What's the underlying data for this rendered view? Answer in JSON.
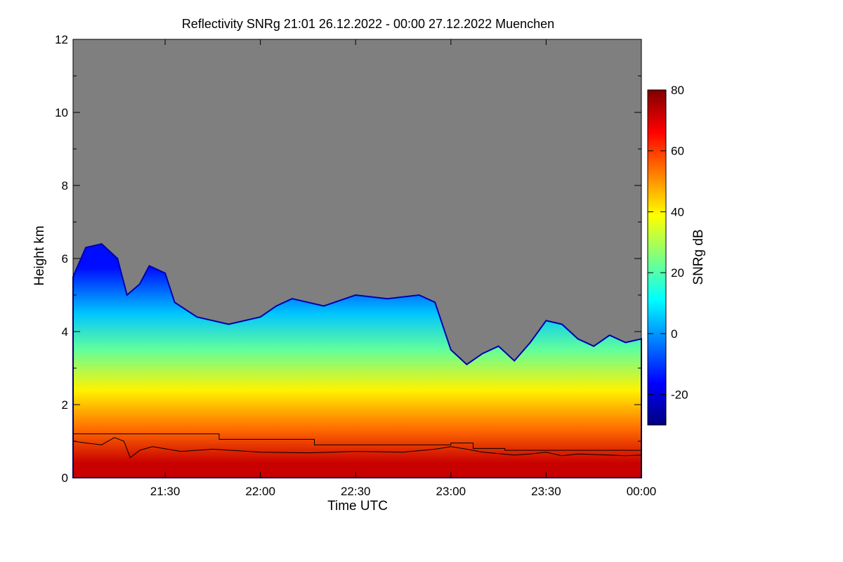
{
  "chart_data": {
    "type": "heatmap",
    "title": "Reflectivity SNRg   21:01 26.12.2022 - 00:00 27.12.2022 Muenchen",
    "xlabel": "Time UTC",
    "ylabel": "Height km",
    "xlim": [
      "21:01",
      "00:00"
    ],
    "ylim": [
      0,
      12
    ],
    "x_ticks": [
      "21:30",
      "22:00",
      "22:30",
      "23:00",
      "23:30",
      "00:00"
    ],
    "y_ticks": [
      0,
      2,
      4,
      6,
      8,
      10,
      12
    ],
    "background_color": "#7f7f7f",
    "grid": false,
    "colorbar": {
      "label": "SNRg dB",
      "range": [
        -30,
        80
      ],
      "ticks": [
        -20,
        0,
        20,
        40,
        60,
        80
      ],
      "colors": [
        "#00007f",
        "#0000ff",
        "#007fff",
        "#00ffff",
        "#7fff7f",
        "#ffff00",
        "#ff7f00",
        "#ff0000",
        "#7f0000"
      ]
    },
    "cloud_top_km": [
      {
        "t": "21:01",
        "h": 5.5
      },
      {
        "t": "21:05",
        "h": 6.3
      },
      {
        "t": "21:10",
        "h": 6.4
      },
      {
        "t": "21:15",
        "h": 6.0
      },
      {
        "t": "21:18",
        "h": 5.0
      },
      {
        "t": "21:22",
        "h": 5.3
      },
      {
        "t": "21:25",
        "h": 5.8
      },
      {
        "t": "21:30",
        "h": 5.6
      },
      {
        "t": "21:33",
        "h": 4.8
      },
      {
        "t": "21:40",
        "h": 4.4
      },
      {
        "t": "21:50",
        "h": 4.2
      },
      {
        "t": "22:00",
        "h": 4.4
      },
      {
        "t": "22:05",
        "h": 4.7
      },
      {
        "t": "22:10",
        "h": 4.9
      },
      {
        "t": "22:20",
        "h": 4.7
      },
      {
        "t": "22:30",
        "h": 5.0
      },
      {
        "t": "22:40",
        "h": 4.9
      },
      {
        "t": "22:50",
        "h": 5.0
      },
      {
        "t": "22:55",
        "h": 4.8
      },
      {
        "t": "23:00",
        "h": 3.5
      },
      {
        "t": "23:05",
        "h": 3.1
      },
      {
        "t": "23:10",
        "h": 3.4
      },
      {
        "t": "23:15",
        "h": 3.6
      },
      {
        "t": "23:20",
        "h": 3.2
      },
      {
        "t": "23:25",
        "h": 3.7
      },
      {
        "t": "23:30",
        "h": 4.3
      },
      {
        "t": "23:35",
        "h": 4.2
      },
      {
        "t": "23:40",
        "h": 3.8
      },
      {
        "t": "23:45",
        "h": 3.6
      },
      {
        "t": "23:50",
        "h": 3.9
      },
      {
        "t": "23:55",
        "h": 3.7
      },
      {
        "t": "00:00",
        "h": 3.8
      }
    ],
    "series": [
      {
        "type": "step",
        "points": [
          {
            "t": "21:01",
            "h": 1.2
          },
          {
            "t": "21:47",
            "h": 1.05
          },
          {
            "t": "22:17",
            "h": 0.9
          },
          {
            "t": "23:00",
            "h": 0.95
          },
          {
            "t": "23:07",
            "h": 0.8
          },
          {
            "t": "23:17",
            "h": 0.75
          },
          {
            "t": "00:00",
            "h": 0.75
          }
        ]
      },
      {
        "type": "line",
        "points": [
          {
            "t": "21:01",
            "h": 1.0
          },
          {
            "t": "21:05",
            "h": 0.95
          },
          {
            "t": "21:10",
            "h": 0.9
          },
          {
            "t": "21:14",
            "h": 1.1
          },
          {
            "t": "21:17",
            "h": 1.0
          },
          {
            "t": "21:19",
            "h": 0.55
          },
          {
            "t": "21:22",
            "h": 0.75
          },
          {
            "t": "21:26",
            "h": 0.85
          },
          {
            "t": "21:35",
            "h": 0.72
          },
          {
            "t": "21:45",
            "h": 0.78
          },
          {
            "t": "22:00",
            "h": 0.7
          },
          {
            "t": "22:15",
            "h": 0.68
          },
          {
            "t": "22:30",
            "h": 0.72
          },
          {
            "t": "22:45",
            "h": 0.7
          },
          {
            "t": "22:55",
            "h": 0.78
          },
          {
            "t": "23:00",
            "h": 0.85
          },
          {
            "t": "23:05",
            "h": 0.78
          },
          {
            "t": "23:10",
            "h": 0.7
          },
          {
            "t": "23:20",
            "h": 0.62
          },
          {
            "t": "23:25",
            "h": 0.65
          },
          {
            "t": "23:30",
            "h": 0.7
          },
          {
            "t": "23:35",
            "h": 0.6
          },
          {
            "t": "23:40",
            "h": 0.65
          },
          {
            "t": "23:50",
            "h": 0.62
          },
          {
            "t": "23:55",
            "h": 0.6
          },
          {
            "t": "00:00",
            "h": 0.62
          }
        ]
      }
    ],
    "dominant_bands_dB": [
      {
        "h_from": 0.0,
        "h_to": 0.8,
        "snr": 72
      },
      {
        "h_from": 0.8,
        "h_to": 1.8,
        "snr": 55
      },
      {
        "h_from": 1.8,
        "h_to": 3.0,
        "snr": 40
      },
      {
        "h_from": 3.0,
        "h_to": 4.0,
        "snr": 22
      },
      {
        "h_from": 4.0,
        "h_to": 5.0,
        "snr": 5
      },
      {
        "h_from": 5.0,
        "h_to": 6.5,
        "snr": -15
      }
    ]
  }
}
